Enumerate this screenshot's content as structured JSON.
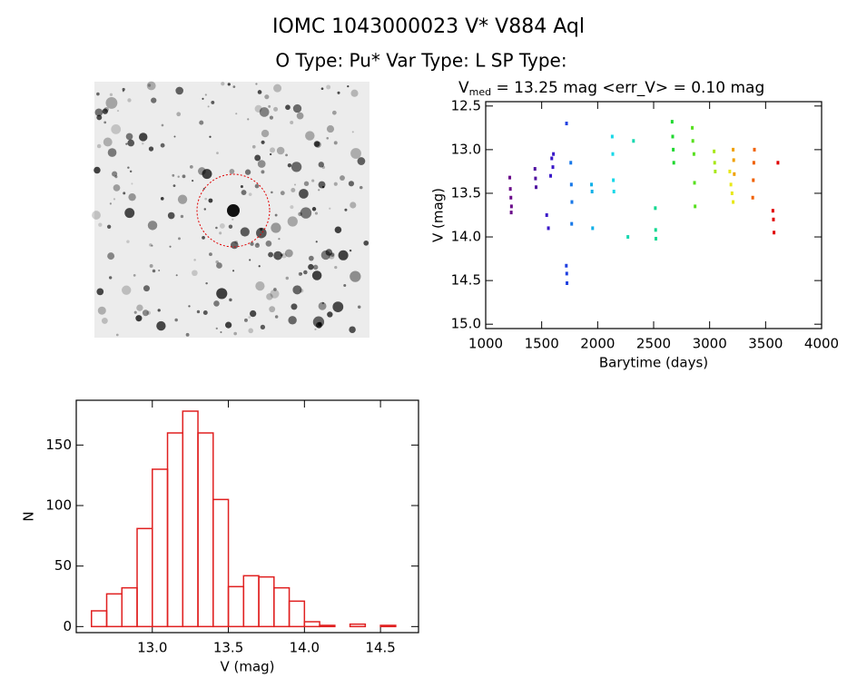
{
  "header": {
    "title": "IOMC 1043000023   V* V884 Aql",
    "subtitle": "O Type: Pu*  Var Type: L  SP Type:"
  },
  "chart_data": [
    {
      "type": "scatter",
      "title": [
        "V",
        "med",
        " = 13.25 mag <err_V> = 0.10 mag"
      ],
      "xlabel": "Barytime (days)",
      "ylabel": "V (mag)",
      "xlim": [
        1000,
        4000
      ],
      "ylim": [
        12.45,
        15.05
      ],
      "y_inverted": true,
      "xticks": [
        1000,
        1500,
        2000,
        2500,
        3000,
        3500,
        4000
      ],
      "yticks": [
        12.5,
        {
          "value": 13,
          "label": "13.0"
        },
        13.5,
        {
          "value": 14,
          "label": "14.0"
        },
        14.5,
        {
          "value": 15,
          "label": "15.0"
        }
      ],
      "series": [
        {
          "color": "#6a0a8a",
          "x": [
            1215,
            1220,
            1225,
            1230,
            1228
          ],
          "values": [
            13.32,
            13.45,
            13.55,
            13.65,
            13.72
          ]
        },
        {
          "color": "#5010a0",
          "x": [
            1440,
            1445,
            1450
          ],
          "values": [
            13.22,
            13.33,
            13.43
          ]
        },
        {
          "color": "#3a18c8",
          "x": [
            1545,
            1560,
            1580,
            1590,
            1600,
            1605
          ],
          "values": [
            13.75,
            13.9,
            13.3,
            13.1,
            13.2,
            13.05
          ]
        },
        {
          "color": "#2040e0",
          "x": [
            1722,
            1720,
            1724,
            1726
          ],
          "values": [
            12.7,
            14.33,
            14.42,
            14.53
          ]
        },
        {
          "color": "#1878e8",
          "x": [
            1760,
            1765,
            1770,
            1768
          ],
          "values": [
            13.15,
            13.4,
            13.6,
            13.85
          ]
        },
        {
          "color": "#10b0e8",
          "x": [
            1945,
            1950,
            1955
          ],
          "values": [
            13.4,
            13.48,
            13.9
          ]
        },
        {
          "color": "#18d8e8",
          "x": [
            2130,
            2135,
            2140,
            2145
          ],
          "values": [
            12.85,
            13.05,
            13.35,
            13.48
          ]
        },
        {
          "color": "#18d8b0",
          "x": [
            2270,
            2320
          ],
          "values": [
            14.0,
            12.9
          ]
        },
        {
          "color": "#10d890",
          "x": [
            2515,
            2518,
            2520
          ],
          "values": [
            13.67,
            13.92,
            14.02
          ]
        },
        {
          "color": "#20d830",
          "x": [
            2665,
            2670,
            2675,
            2680
          ],
          "values": [
            12.68,
            12.85,
            13.0,
            13.15
          ]
        },
        {
          "color": "#58e020",
          "x": [
            2845,
            2850,
            2860,
            2865,
            2870
          ],
          "values": [
            12.75,
            12.9,
            13.05,
            13.38,
            13.65
          ]
        },
        {
          "color": "#a8e818",
          "x": [
            3040,
            3045,
            3050
          ],
          "values": [
            13.02,
            13.15,
            13.25
          ]
        },
        {
          "color": "#e8e818",
          "x": [
            3180,
            3190,
            3200,
            3210
          ],
          "values": [
            13.25,
            13.4,
            13.5,
            13.6
          ]
        },
        {
          "color": "#f0a000",
          "x": [
            3210,
            3215,
            3220
          ],
          "values": [
            13.0,
            13.12,
            13.28
          ]
        },
        {
          "color": "#f06000",
          "x": [
            3385,
            3390,
            3395,
            3400
          ],
          "values": [
            13.55,
            13.35,
            13.15,
            13.0
          ]
        },
        {
          "color": "#e00000",
          "x": [
            3565,
            3570,
            3575,
            3610
          ],
          "values": [
            13.7,
            13.8,
            13.95,
            13.15
          ]
        }
      ]
    },
    {
      "type": "histogram",
      "xlabel": "V (mag)",
      "ylabel": "N",
      "color": "#e02020",
      "xlim": [
        12.5,
        14.75
      ],
      "ylim": [
        -5,
        187
      ],
      "xticks": [
        {
          "value": 13,
          "label": "13.0"
        },
        13.5,
        {
          "value": 14,
          "label": "14.0"
        },
        14.5
      ],
      "yticks": [
        0,
        50,
        100,
        150
      ],
      "bins": [
        12.6,
        12.7,
        12.8,
        12.9,
        13.0,
        13.1,
        13.2,
        13.3,
        13.4,
        13.5,
        13.6,
        13.7,
        13.8,
        13.9,
        14.0,
        14.1,
        14.2,
        14.3,
        14.4,
        14.5,
        14.6
      ],
      "values": [
        13,
        27,
        32,
        81,
        130,
        160,
        178,
        160,
        105,
        33,
        42,
        41,
        32,
        21,
        4,
        1,
        0,
        2,
        0,
        1
      ]
    }
  ]
}
